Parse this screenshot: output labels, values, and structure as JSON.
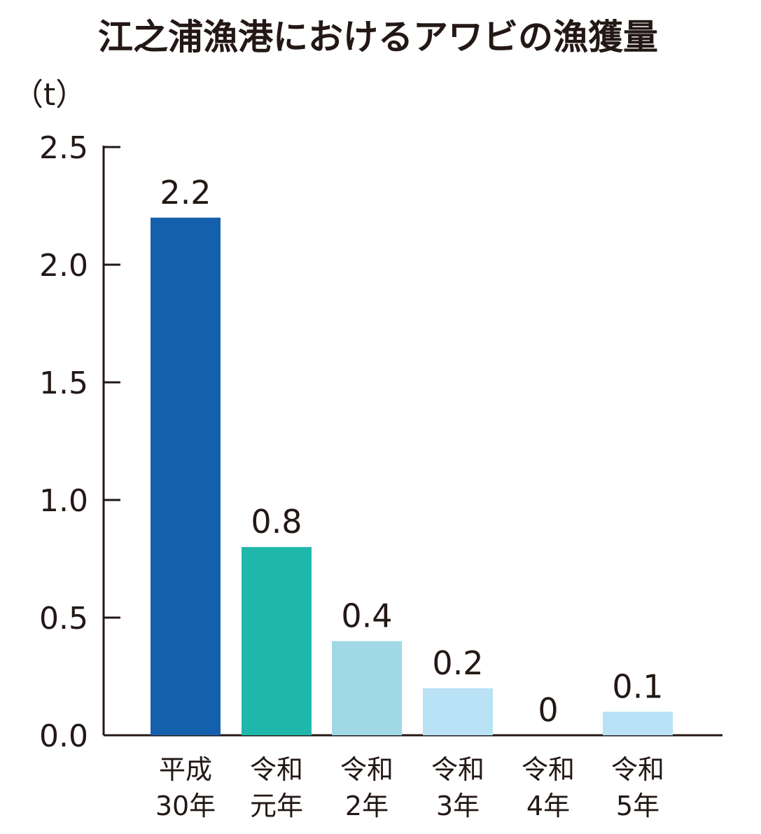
{
  "chart_data": {
    "type": "bar",
    "title": "江之浦漁港におけるアワビの漁獲量",
    "ylabel": "（t）",
    "xlabel": "",
    "ylim": [
      0,
      2.5
    ],
    "yticks": [
      "0.0",
      "0.5",
      "1.0",
      "1.5",
      "2.0",
      "2.5"
    ],
    "categories": [
      [
        "平成",
        "30年"
      ],
      [
        "令和",
        "元年"
      ],
      [
        "令和",
        "2年"
      ],
      [
        "令和",
        "3年"
      ],
      [
        "令和",
        "4年"
      ],
      [
        "令和",
        "5年"
      ]
    ],
    "values": [
      2.2,
      0.8,
      0.4,
      0.2,
      0,
      0.1
    ],
    "data_labels": [
      "2.2",
      "0.8",
      "0.4",
      "0.2",
      "0",
      "0.1"
    ],
    "colors": [
      "#1560ad",
      "#20b7ab",
      "#a0d8e6",
      "#b9e2f6",
      "#b9e2f6",
      "#b9e2f6"
    ],
    "grid": false,
    "legend": "none"
  }
}
